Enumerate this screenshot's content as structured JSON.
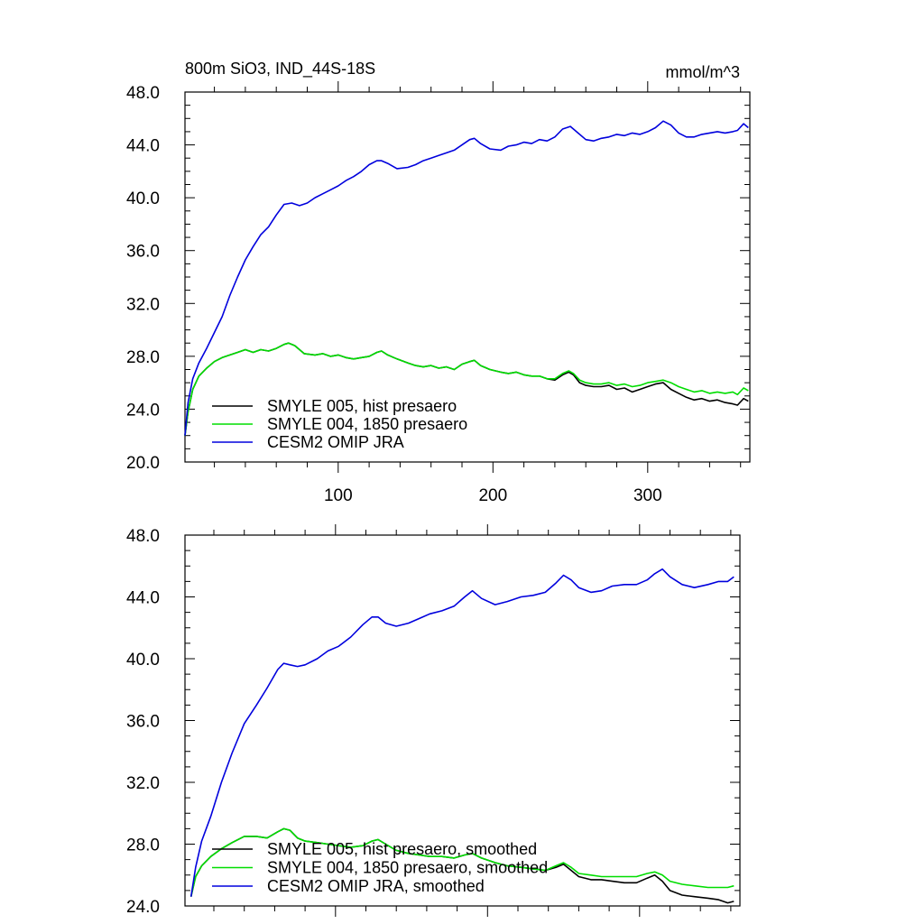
{
  "chart_data": [
    {
      "type": "line",
      "title_left": "800m SiO3, IND_44S-18S",
      "title_right": "mmol/m^3",
      "xlim": [
        1,
        366
      ],
      "ylim": [
        20,
        48
      ],
      "x_ticks": [
        100,
        200,
        300
      ],
      "x_tick_labels": [
        "100",
        "200",
        "300"
      ],
      "y_ticks": [
        20,
        24,
        28,
        32,
        36,
        40,
        44,
        48
      ],
      "y_tick_labels": [
        "20.0",
        "24.0",
        "28.0",
        "32.0",
        "36.0",
        "40.0",
        "44.0",
        "48.0"
      ],
      "grid": false,
      "legend_position": "bottom-left",
      "series": [
        {
          "name": "SMYLE 005, hist presaero",
          "color": "#000000",
          "x": [
            1,
            3,
            6,
            10,
            15,
            20,
            25,
            30,
            35,
            40,
            45,
            50,
            55,
            60,
            65,
            68,
            72,
            78,
            85,
            90,
            95,
            100,
            105,
            110,
            115,
            120,
            125,
            128,
            132,
            138,
            145,
            150,
            155,
            160,
            165,
            170,
            175,
            180,
            185,
            188,
            192,
            198,
            205,
            210,
            215,
            220,
            225,
            230,
            235,
            240,
            245,
            249,
            252,
            256,
            260,
            265,
            270,
            275,
            280,
            285,
            290,
            295,
            300,
            305,
            310,
            315,
            320,
            325,
            330,
            335,
            340,
            345,
            350,
            355,
            358,
            362,
            365
          ],
          "y": [
            22.0,
            23.8,
            25.5,
            26.5,
            27.1,
            27.6,
            27.9,
            28.1,
            28.3,
            28.5,
            28.3,
            28.5,
            28.4,
            28.6,
            28.9,
            29.0,
            28.8,
            28.2,
            28.1,
            28.2,
            28.0,
            28.1,
            27.9,
            27.8,
            27.9,
            28.0,
            28.3,
            28.4,
            28.1,
            27.8,
            27.5,
            27.3,
            27.2,
            27.3,
            27.1,
            27.2,
            27.0,
            27.4,
            27.6,
            27.7,
            27.3,
            27.0,
            26.8,
            26.7,
            26.8,
            26.6,
            26.5,
            26.5,
            26.3,
            26.2,
            26.6,
            26.8,
            26.6,
            26.0,
            25.8,
            25.7,
            25.7,
            25.8,
            25.5,
            25.6,
            25.3,
            25.5,
            25.7,
            25.9,
            26.0,
            25.5,
            25.2,
            24.9,
            24.7,
            24.8,
            24.6,
            24.7,
            24.5,
            24.4,
            24.3,
            24.8,
            24.6
          ]
        },
        {
          "name": "SMYLE 004, 1850 presaero",
          "color": "#00dd00",
          "x": [
            1,
            3,
            6,
            10,
            15,
            20,
            25,
            30,
            35,
            40,
            45,
            50,
            55,
            60,
            65,
            68,
            72,
            78,
            85,
            90,
            95,
            100,
            105,
            110,
            115,
            120,
            125,
            128,
            132,
            138,
            145,
            150,
            155,
            160,
            165,
            170,
            175,
            180,
            185,
            188,
            192,
            198,
            205,
            210,
            215,
            220,
            225,
            230,
            235,
            240,
            245,
            249,
            252,
            256,
            260,
            265,
            270,
            275,
            280,
            285,
            290,
            295,
            300,
            305,
            310,
            315,
            320,
            325,
            330,
            335,
            340,
            345,
            350,
            355,
            358,
            362,
            365
          ],
          "y": [
            22.0,
            23.8,
            25.5,
            26.5,
            27.1,
            27.6,
            27.9,
            28.1,
            28.3,
            28.5,
            28.3,
            28.5,
            28.4,
            28.6,
            28.9,
            29.0,
            28.8,
            28.2,
            28.1,
            28.2,
            28.0,
            28.1,
            27.9,
            27.8,
            27.9,
            28.0,
            28.3,
            28.4,
            28.1,
            27.8,
            27.5,
            27.3,
            27.2,
            27.3,
            27.1,
            27.2,
            27.0,
            27.4,
            27.6,
            27.7,
            27.3,
            27.0,
            26.8,
            26.7,
            26.8,
            26.6,
            26.5,
            26.5,
            26.3,
            26.3,
            26.7,
            26.9,
            26.7,
            26.2,
            26.0,
            25.9,
            25.9,
            26.0,
            25.8,
            25.9,
            25.7,
            25.8,
            26.0,
            26.1,
            26.2,
            26.0,
            25.7,
            25.5,
            25.3,
            25.4,
            25.2,
            25.3,
            25.2,
            25.3,
            25.1,
            25.6,
            25.4
          ]
        },
        {
          "name": "CESM2 OMIP JRA",
          "color": "#0000dd",
          "x": [
            1,
            3,
            6,
            10,
            15,
            20,
            25,
            30,
            35,
            40,
            45,
            50,
            55,
            60,
            65,
            70,
            75,
            80,
            85,
            90,
            95,
            100,
            105,
            110,
            115,
            120,
            125,
            128,
            132,
            138,
            145,
            150,
            155,
            160,
            165,
            170,
            175,
            180,
            185,
            188,
            192,
            198,
            205,
            210,
            215,
            220,
            225,
            230,
            235,
            240,
            245,
            250,
            255,
            260,
            265,
            270,
            275,
            280,
            285,
            290,
            295,
            300,
            305,
            310,
            315,
            320,
            325,
            330,
            335,
            340,
            345,
            350,
            355,
            358,
            362,
            365
          ],
          "y": [
            22.0,
            24.5,
            26.3,
            27.5,
            28.6,
            29.8,
            31.0,
            32.6,
            34.0,
            35.3,
            36.3,
            37.2,
            37.8,
            38.7,
            39.5,
            39.6,
            39.4,
            39.6,
            40.0,
            40.3,
            40.6,
            40.9,
            41.3,
            41.6,
            42.0,
            42.5,
            42.8,
            42.8,
            42.6,
            42.2,
            42.3,
            42.5,
            42.8,
            43.0,
            43.2,
            43.4,
            43.6,
            44.0,
            44.4,
            44.5,
            44.1,
            43.7,
            43.6,
            43.9,
            44.0,
            44.2,
            44.1,
            44.4,
            44.3,
            44.6,
            45.2,
            45.4,
            44.9,
            44.4,
            44.3,
            44.5,
            44.6,
            44.8,
            44.7,
            44.9,
            44.8,
            45.0,
            45.3,
            45.8,
            45.5,
            44.9,
            44.6,
            44.6,
            44.8,
            44.9,
            45.0,
            44.9,
            45.0,
            45.1,
            45.6,
            45.3
          ]
        }
      ]
    },
    {
      "type": "line",
      "xlim": [
        1,
        366
      ],
      "ylim": [
        24,
        48
      ],
      "x_ticks": [
        100,
        200,
        300
      ],
      "x_tick_labels": [],
      "y_ticks": [
        24,
        28,
        32,
        36,
        40,
        44,
        48
      ],
      "y_tick_labels": [
        "24.0",
        "28.0",
        "32.0",
        "36.0",
        "40.0",
        "44.0",
        "48.0"
      ],
      "grid": false,
      "legend_position": "bottom-left",
      "series": [
        {
          "name": "SMYLE 005, hist presaero, smoothed",
          "color": "#000000",
          "x": [
            5,
            8,
            12,
            18,
            25,
            32,
            40,
            48,
            55,
            62,
            66,
            70,
            75,
            80,
            88,
            95,
            102,
            110,
            118,
            124,
            128,
            133,
            140,
            148,
            155,
            162,
            170,
            178,
            185,
            190,
            196,
            205,
            213,
            222,
            230,
            238,
            245,
            250,
            255,
            260,
            268,
            275,
            282,
            290,
            298,
            305,
            310,
            315,
            320,
            328,
            336,
            345,
            352,
            358,
            362
          ],
          "y": [
            24.6,
            25.9,
            26.6,
            27.2,
            27.7,
            28.1,
            28.5,
            28.5,
            28.4,
            28.8,
            29.0,
            28.9,
            28.4,
            28.2,
            28.1,
            28.0,
            27.9,
            27.8,
            27.9,
            28.2,
            28.3,
            28.0,
            27.6,
            27.4,
            27.3,
            27.2,
            27.2,
            27.1,
            27.3,
            27.4,
            27.1,
            26.8,
            26.6,
            26.5,
            26.4,
            26.3,
            26.5,
            26.7,
            26.3,
            25.9,
            25.7,
            25.7,
            25.6,
            25.5,
            25.5,
            25.8,
            26.0,
            25.6,
            25.0,
            24.7,
            24.6,
            24.5,
            24.4,
            24.2,
            24.3
          ]
        },
        {
          "name": "SMYLE 004, 1850 presaero, smoothed",
          "color": "#00dd00",
          "x": [
            5,
            8,
            12,
            18,
            25,
            32,
            40,
            48,
            55,
            62,
            66,
            70,
            75,
            80,
            88,
            95,
            102,
            110,
            118,
            124,
            128,
            133,
            140,
            148,
            155,
            162,
            170,
            178,
            185,
            190,
            196,
            205,
            213,
            222,
            230,
            238,
            245,
            250,
            255,
            260,
            268,
            275,
            282,
            290,
            298,
            305,
            310,
            315,
            320,
            328,
            336,
            345,
            352,
            358,
            362
          ],
          "y": [
            24.6,
            25.9,
            26.6,
            27.2,
            27.7,
            28.1,
            28.5,
            28.5,
            28.4,
            28.8,
            29.0,
            28.9,
            28.4,
            28.2,
            28.1,
            28.0,
            27.9,
            27.8,
            27.9,
            28.2,
            28.3,
            28.0,
            27.6,
            27.4,
            27.3,
            27.2,
            27.2,
            27.1,
            27.3,
            27.4,
            27.1,
            26.8,
            26.6,
            26.5,
            26.4,
            26.3,
            26.6,
            26.8,
            26.5,
            26.1,
            26.0,
            25.9,
            25.9,
            25.9,
            25.9,
            26.1,
            26.2,
            26.0,
            25.6,
            25.4,
            25.3,
            25.2,
            25.2,
            25.2,
            25.3
          ]
        },
        {
          "name": "CESM2 OMIP JRA, smoothed",
          "color": "#0000dd",
          "x": [
            5,
            8,
            12,
            18,
            25,
            32,
            40,
            48,
            55,
            62,
            66,
            70,
            75,
            80,
            88,
            95,
            102,
            110,
            118,
            124,
            128,
            133,
            140,
            148,
            155,
            162,
            170,
            178,
            185,
            190,
            196,
            205,
            213,
            222,
            230,
            238,
            245,
            250,
            255,
            260,
            268,
            275,
            282,
            290,
            298,
            305,
            310,
            315,
            320,
            328,
            336,
            345,
            352,
            358,
            362
          ],
          "y": [
            24.6,
            26.5,
            28.2,
            29.8,
            32.0,
            33.9,
            35.8,
            37.0,
            38.1,
            39.3,
            39.7,
            39.6,
            39.5,
            39.6,
            40.0,
            40.5,
            40.8,
            41.4,
            42.2,
            42.7,
            42.7,
            42.3,
            42.1,
            42.3,
            42.6,
            42.9,
            43.1,
            43.4,
            44.0,
            44.4,
            43.9,
            43.5,
            43.7,
            44.0,
            44.1,
            44.3,
            44.9,
            45.4,
            45.1,
            44.6,
            44.3,
            44.4,
            44.7,
            44.8,
            44.8,
            45.1,
            45.5,
            45.8,
            45.3,
            44.8,
            44.6,
            44.8,
            45.0,
            45.0,
            45.3
          ]
        }
      ]
    }
  ]
}
